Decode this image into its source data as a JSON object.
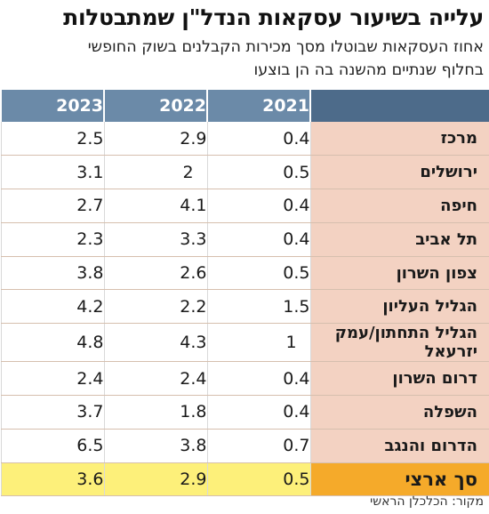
{
  "header": {
    "title": "עלייה בשיעור עסקאות הנדל\"ן שמתבטלות",
    "subtitle_line1": "אחוז העסקאות שבוטלו מסך מכירות הקבלנים בשוק החופשי",
    "subtitle_line2": "בחלוף שנתיים מהשנה בה הן בוצעו"
  },
  "table": {
    "columns": [
      "",
      "2021",
      "2022",
      "2023"
    ],
    "rows": [
      {
        "region": "מרכז",
        "v2021": "0.4",
        "v2022": "2.9",
        "v2023": "2.5"
      },
      {
        "region": "ירושלים",
        "v2021": "0.5",
        "v2022": "2",
        "v2023": "3.1"
      },
      {
        "region": "חיפה",
        "v2021": "0.4",
        "v2022": "4.1",
        "v2023": "2.7"
      },
      {
        "region": "תל אביב",
        "v2021": "0.4",
        "v2022": "3.3",
        "v2023": "2.3"
      },
      {
        "region": "צפון השרון",
        "v2021": "0.5",
        "v2022": "2.6",
        "v2023": "3.8"
      },
      {
        "region": "הגליל העליון",
        "v2021": "1.5",
        "v2022": "2.2",
        "v2023": "4.2"
      },
      {
        "region": "הגליל התחתון/עמק יזרעאל",
        "v2021": "1",
        "v2022": "4.3",
        "v2023": "4.8"
      },
      {
        "region": "דרום השרון",
        "v2021": "0.4",
        "v2022": "2.4",
        "v2023": "2.4"
      },
      {
        "region": "השפלה",
        "v2021": "0.4",
        "v2022": "1.8",
        "v2023": "3.7"
      },
      {
        "region": "הדרום והנגב",
        "v2021": "0.7",
        "v2022": "3.8",
        "v2023": "6.5"
      }
    ],
    "total": {
      "region": "סך ארצי",
      "v2021": "0.5",
      "v2022": "2.9",
      "v2023": "3.6"
    }
  },
  "footer": {
    "source": "מקור: הכלכלן הראשי"
  },
  "colors": {
    "header_bg": "#6b8aa8",
    "region_bg": "#f3d2c2",
    "total_row_bg": "#fdf07a",
    "total_label_bg": "#f5aa2a"
  },
  "chart_data": {
    "type": "table",
    "title": "עלייה בשיעור עסקאות הנדל\"ן שמתבטלות",
    "subtitle": "אחוז העסקאות שבוטלו מסך מכירות הקבלנים בשוק החופשי בחלוף שנתיים מהשנה בה הן בוצעו",
    "columns": [
      "2021",
      "2022",
      "2023"
    ],
    "categories": [
      "מרכז",
      "ירושלים",
      "חיפה",
      "תל אביב",
      "צפון השרון",
      "הגליל העליון",
      "הגליל התחתון/עמק יזרעאל",
      "דרום השרון",
      "השפלה",
      "הדרום והנגב",
      "סך ארצי"
    ],
    "series": [
      {
        "name": "2021",
        "values": [
          0.4,
          0.5,
          0.4,
          0.4,
          0.5,
          1.5,
          1,
          0.4,
          0.4,
          0.7,
          0.5
        ]
      },
      {
        "name": "2022",
        "values": [
          2.9,
          2,
          4.1,
          3.3,
          2.6,
          2.2,
          4.3,
          2.4,
          1.8,
          3.8,
          2.9
        ]
      },
      {
        "name": "2023",
        "values": [
          2.5,
          3.1,
          2.7,
          2.3,
          3.8,
          4.2,
          4.8,
          2.4,
          3.7,
          6.5,
          3.6
        ]
      }
    ],
    "source": "מקור: הכלכלן הראשי"
  }
}
